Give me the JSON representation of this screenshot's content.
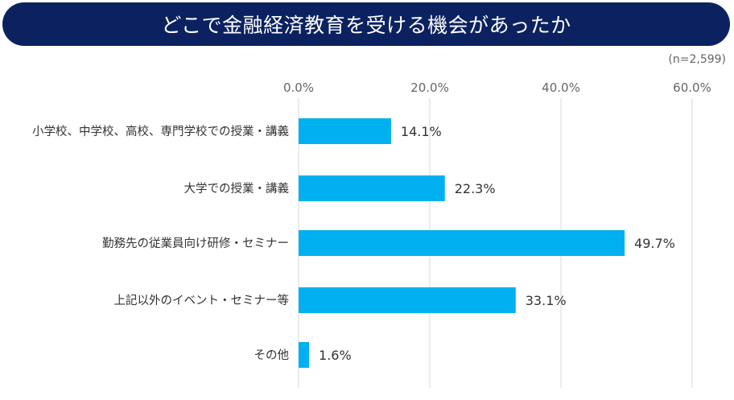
{
  "title": "どこで金融経済教育を受ける機会があったか",
  "sample_size": "(n=2,599)",
  "colors": {
    "banner": "#0c2260",
    "bar": "#00b0f0",
    "grid": "#d9d9d9"
  },
  "chart_data": {
    "type": "bar",
    "orientation": "horizontal",
    "categories": [
      "小学校、中学校、高校、専門学校での授業・講義",
      "大学での授業・講義",
      "勤務先の従業員向け研修・セミナー",
      "上記以外のイベント・セミナー等",
      "その他"
    ],
    "values": [
      14.1,
      22.3,
      49.7,
      33.1,
      1.6
    ],
    "value_labels": [
      "14.1%",
      "22.3%",
      "49.7%",
      "33.1%",
      "1.6%"
    ],
    "xlim": [
      0,
      60
    ],
    "ticks": [
      0,
      20,
      40,
      60
    ],
    "tick_labels": [
      "0.0%",
      "20.0%",
      "40.0%",
      "60.0%"
    ],
    "axis_position": "top",
    "grid": true,
    "unit": "%"
  }
}
